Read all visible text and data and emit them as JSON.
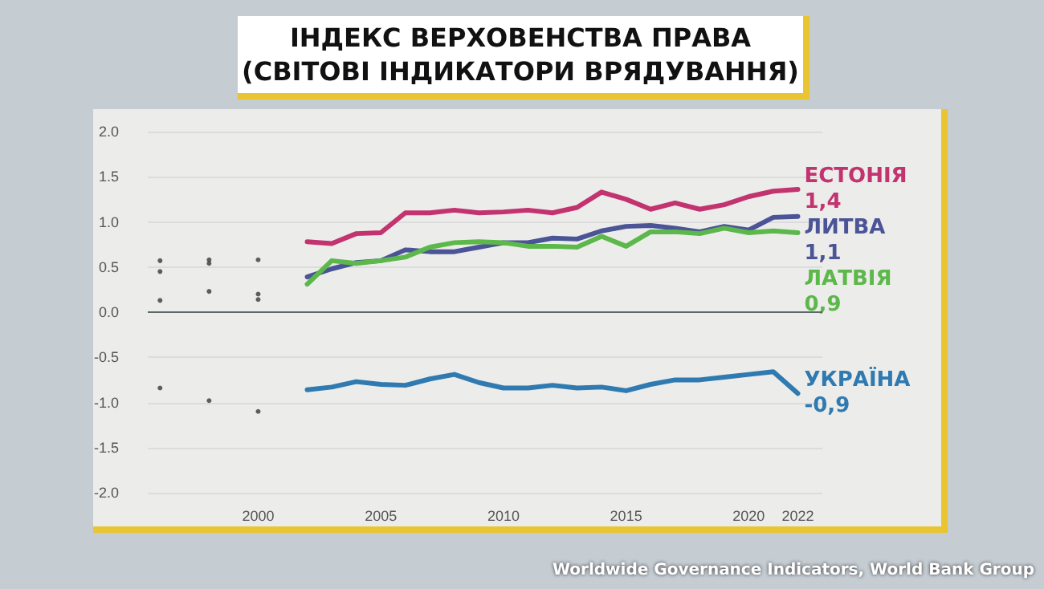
{
  "chart_data": {
    "type": "line",
    "title": "ІНДЕКС ВЕРХОВЕНСТВА ПРАВА\n(СВІТОВІ ІНДИКАТОРИ ВРЯДУВАННЯ)",
    "x": [
      2002,
      2003,
      2004,
      2005,
      2006,
      2007,
      2008,
      2009,
      2010,
      2011,
      2012,
      2013,
      2014,
      2015,
      2016,
      2017,
      2018,
      2019,
      2020,
      2021,
      2022
    ],
    "series": [
      {
        "name": "ЕСТОНІЯ",
        "color": "#c2336f",
        "values": [
          0.78,
          0.76,
          0.87,
          0.88,
          1.1,
          1.1,
          1.13,
          1.1,
          1.11,
          1.13,
          1.1,
          1.16,
          1.33,
          1.25,
          1.14,
          1.21,
          1.14,
          1.19,
          1.28,
          1.34,
          1.36
        ],
        "value_labels": [
          null,
          null,
          null,
          null,
          null,
          null,
          null,
          null,
          null,
          null,
          null,
          null,
          null,
          null,
          null,
          null,
          null,
          null,
          null,
          null,
          "1,4"
        ]
      },
      {
        "name": "ЛИТВА",
        "color": "#4a5496",
        "values": [
          0.39,
          0.48,
          0.55,
          0.57,
          0.69,
          0.67,
          0.67,
          0.72,
          0.77,
          0.77,
          0.82,
          0.81,
          0.9,
          0.95,
          0.96,
          0.93,
          0.89,
          0.95,
          0.91,
          1.05,
          1.06
        ],
        "value_labels": [
          null,
          null,
          null,
          null,
          null,
          null,
          null,
          null,
          null,
          null,
          null,
          null,
          null,
          null,
          null,
          null,
          null,
          null,
          null,
          null,
          "1,1"
        ]
      },
      {
        "name": "ЛАТВІЯ",
        "color": "#5cb84a",
        "values": [
          0.31,
          0.57,
          0.54,
          0.57,
          0.61,
          0.72,
          0.77,
          0.78,
          0.77,
          0.73,
          0.73,
          0.72,
          0.84,
          0.73,
          0.89,
          0.89,
          0.87,
          0.93,
          0.88,
          0.9,
          0.88
        ],
        "value_labels": [
          null,
          null,
          null,
          null,
          null,
          null,
          null,
          null,
          null,
          null,
          null,
          null,
          null,
          null,
          null,
          null,
          null,
          null,
          null,
          null,
          "0,9"
        ]
      },
      {
        "name": "УКРАЇНА",
        "color": "#2f7ab0",
        "values": [
          -0.86,
          -0.83,
          -0.77,
          -0.8,
          -0.81,
          -0.74,
          -0.69,
          -0.78,
          -0.84,
          -0.84,
          -0.81,
          -0.84,
          -0.83,
          -0.87,
          -0.8,
          -0.75,
          -0.75,
          -0.72,
          -0.69,
          -0.66,
          -0.9
        ],
        "value_labels": [
          null,
          null,
          null,
          null,
          null,
          null,
          null,
          null,
          null,
          null,
          null,
          null,
          null,
          null,
          null,
          null,
          null,
          null,
          null,
          null,
          "-0,9"
        ]
      },
      {
        "type": "scatter",
        "color": "#3a3a3a",
        "marker": "circle",
        "x": [
          1996,
          1996,
          1996,
          1996,
          1998,
          1998,
          1998,
          1998,
          2000,
          2000,
          2000,
          2000
        ],
        "values": [
          0.57,
          0.45,
          0.13,
          -0.84,
          0.58,
          0.54,
          0.23,
          -0.98,
          0.58,
          0.2,
          0.14,
          -1.1
        ]
      }
    ],
    "xlim": [
      1995.5,
      2023
    ],
    "xticks": [
      2000,
      2005,
      2010,
      2015,
      2020,
      2022
    ],
    "ylim": [
      -2,
      2
    ],
    "yticks": [
      {
        "value": -2,
        "label": "-2.0"
      },
      {
        "value": -1.5,
        "label": "-1.5"
      },
      {
        "value": -1,
        "label": "-1.0"
      },
      {
        "value": -0.5,
        "label": "-0.5"
      },
      {
        "value": 0,
        "label": "0.0"
      },
      {
        "value": 0.5,
        "label": "0.5"
      },
      {
        "value": 1,
        "label": "1.0"
      },
      {
        "value": 1.5,
        "label": "1.5"
      },
      {
        "value": 2,
        "label": "2.0"
      }
    ],
    "grid": "y",
    "legend": false,
    "line_style": "solid",
    "ref_lines": [
      {
        "axis": "y",
        "value": 0,
        "color": "#5a6a6a"
      }
    ],
    "annotations": [
      "Worldwide Governance Indicators, World Bank Group"
    ]
  }
}
